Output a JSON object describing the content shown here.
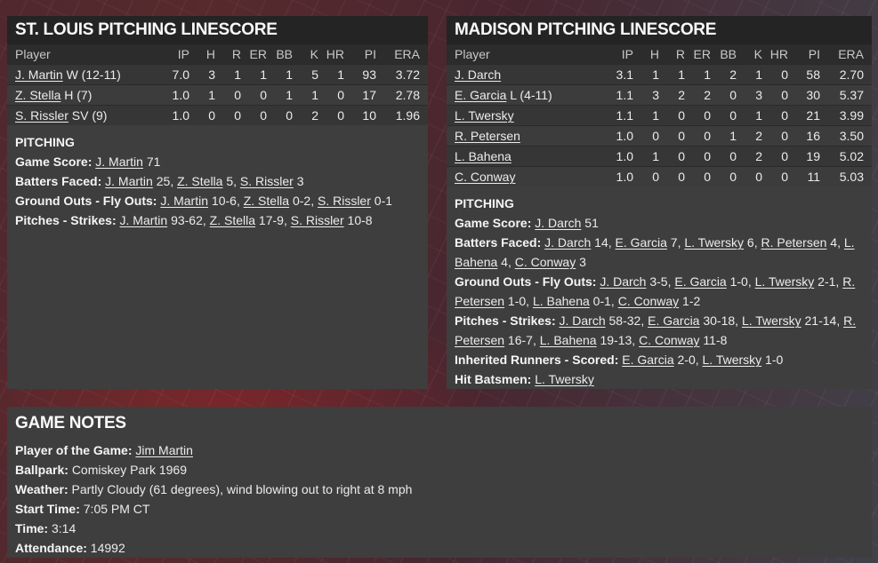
{
  "colors": {
    "background_maroon": "#47272d",
    "background_gray_right": "#424049",
    "panel_bg": "#3e3e3e",
    "titlebar_bg": "#242424",
    "table_header_bg": "#2c2c2c",
    "row_odd": "#363636",
    "row_even": "#3c3c3c",
    "text": "#ececec"
  },
  "panels": {
    "stl": {
      "title": "ST. LOUIS PITCHING LINESCORE",
      "columns": [
        "Player",
        "IP",
        "H",
        "R",
        "ER",
        "BB",
        "K",
        "HR",
        "PI",
        "ERA"
      ],
      "rows": [
        {
          "player": "J. Martin",
          "suffix": "W (12-11)",
          "stats": [
            "7.0",
            "3",
            "1",
            "1",
            "1",
            "5",
            "1",
            "93",
            "3.72"
          ]
        },
        {
          "player": "Z. Stella",
          "suffix": "H (7)",
          "stats": [
            "1.0",
            "1",
            "0",
            "0",
            "1",
            "1",
            "0",
            "17",
            "2.78"
          ]
        },
        {
          "player": "S. Rissler",
          "suffix": "SV (9)",
          "stats": [
            "1.0",
            "0",
            "0",
            "0",
            "0",
            "2",
            "0",
            "10",
            "1.96"
          ]
        }
      ],
      "section_title": "PITCHING",
      "lines": [
        {
          "label": "Game Score:",
          "segments": [
            {
              "player": "J. Martin",
              "value": "71"
            }
          ]
        },
        {
          "label": "Batters Faced:",
          "segments": [
            {
              "player": "J. Martin",
              "value": "25"
            },
            {
              "player": "Z. Stella",
              "value": "5"
            },
            {
              "player": "S. Rissler",
              "value": "3"
            }
          ]
        },
        {
          "label": "Ground Outs - Fly Outs:",
          "segments": [
            {
              "player": "J. Martin",
              "value": "10-6"
            },
            {
              "player": "Z. Stella",
              "value": "0-2"
            },
            {
              "player": "S. Rissler",
              "value": "0-1"
            }
          ]
        },
        {
          "label": "Pitches - Strikes:",
          "segments": [
            {
              "player": "J. Martin",
              "value": "93-62"
            },
            {
              "player": "Z. Stella",
              "value": "17-9"
            },
            {
              "player": "S. Rissler",
              "value": "10-8"
            }
          ]
        }
      ]
    },
    "madison": {
      "title": "MADISON PITCHING LINESCORE",
      "columns": [
        "Player",
        "IP",
        "H",
        "R",
        "ER",
        "BB",
        "K",
        "HR",
        "PI",
        "ERA"
      ],
      "rows": [
        {
          "player": "J. Darch",
          "suffix": "",
          "stats": [
            "3.1",
            "1",
            "1",
            "1",
            "2",
            "1",
            "0",
            "58",
            "2.70"
          ]
        },
        {
          "player": "E. Garcia",
          "suffix": "L (4-11)",
          "stats": [
            "1.1",
            "3",
            "2",
            "2",
            "0",
            "3",
            "0",
            "30",
            "5.37"
          ]
        },
        {
          "player": "L. Twersky",
          "suffix": "",
          "stats": [
            "1.1",
            "1",
            "0",
            "0",
            "0",
            "1",
            "0",
            "21",
            "3.99"
          ]
        },
        {
          "player": "R. Petersen",
          "suffix": "",
          "stats": [
            "1.0",
            "0",
            "0",
            "0",
            "1",
            "2",
            "0",
            "16",
            "3.50"
          ]
        },
        {
          "player": "L. Bahena",
          "suffix": "",
          "stats": [
            "1.0",
            "1",
            "0",
            "0",
            "0",
            "2",
            "0",
            "19",
            "5.02"
          ]
        },
        {
          "player": "C. Conway",
          "suffix": "",
          "stats": [
            "1.0",
            "0",
            "0",
            "0",
            "0",
            "0",
            "0",
            "11",
            "5.03"
          ]
        }
      ],
      "section_title": "PITCHING",
      "lines": [
        {
          "label": "Game Score:",
          "segments": [
            {
              "player": "J. Darch",
              "value": "51"
            }
          ]
        },
        {
          "label": "Batters Faced:",
          "segments": [
            {
              "player": "J. Darch",
              "value": "14"
            },
            {
              "player": "E. Garcia",
              "value": "7"
            },
            {
              "player": "L. Twersky",
              "value": "6"
            },
            {
              "player": "R. Petersen",
              "value": "4"
            },
            {
              "player": "L. Bahena",
              "value": "4"
            },
            {
              "player": "C. Conway",
              "value": "3"
            }
          ]
        },
        {
          "label": "Ground Outs - Fly Outs:",
          "segments": [
            {
              "player": "J. Darch",
              "value": "3-5"
            },
            {
              "player": "E. Garcia",
              "value": "1-0"
            },
            {
              "player": "L. Twersky",
              "value": "2-1"
            },
            {
              "player": "R. Petersen",
              "value": "1-0"
            },
            {
              "player": "L. Bahena",
              "value": "0-1"
            },
            {
              "player": "C. Conway",
              "value": "1-2"
            }
          ]
        },
        {
          "label": "Pitches - Strikes:",
          "segments": [
            {
              "player": "J. Darch",
              "value": "58-32"
            },
            {
              "player": "E. Garcia",
              "value": "30-18"
            },
            {
              "player": "L. Twersky",
              "value": "21-14"
            },
            {
              "player": "R. Petersen",
              "value": "16-7"
            },
            {
              "player": "L. Bahena",
              "value": "19-13"
            },
            {
              "player": "C. Conway",
              "value": "11-8"
            }
          ]
        },
        {
          "label": "Inherited Runners - Scored:",
          "segments": [
            {
              "player": "E. Garcia",
              "value": "2-0"
            },
            {
              "player": "L. Twersky",
              "value": "1-0"
            }
          ]
        },
        {
          "label": "Hit Batsmen:",
          "segments": [
            {
              "player": "L. Twersky",
              "value": ""
            }
          ]
        }
      ]
    }
  },
  "game_notes": {
    "title": "GAME NOTES",
    "lines": [
      {
        "label": "Player of the Game:",
        "link": "Jim Martin",
        "value": ""
      },
      {
        "label": "Ballpark:",
        "link": "",
        "value": "Comiskey Park 1969"
      },
      {
        "label": "Weather:",
        "link": "",
        "value": "Partly Cloudy (61 degrees), wind blowing out to right at 8 mph"
      },
      {
        "label": "Start Time:",
        "link": "",
        "value": "7:05 PM CT"
      },
      {
        "label": "Time:",
        "link": "",
        "value": "3:14"
      },
      {
        "label": "Attendance:",
        "link": "",
        "value": "14992"
      }
    ]
  }
}
